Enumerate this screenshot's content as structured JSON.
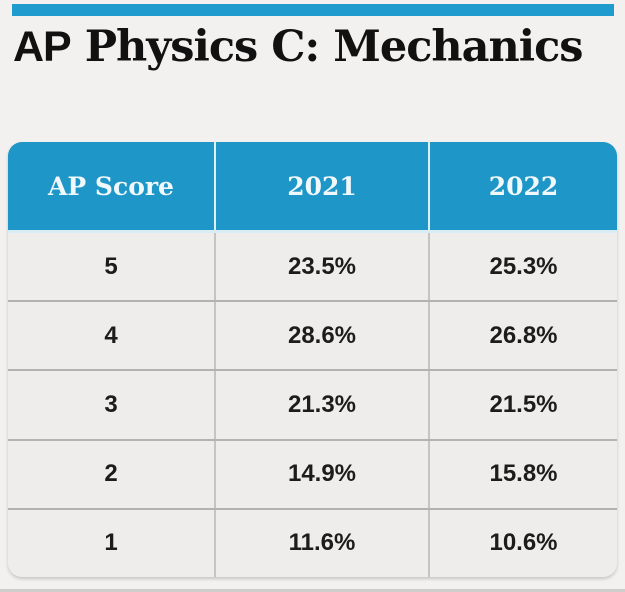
{
  "page": {
    "title_prefix": "AP",
    "title_rest": " Physics C: Mechanics"
  },
  "chart_data": {
    "type": "table",
    "title": "AP Physics C: Mechanics",
    "columns": [
      "AP Score",
      "2021",
      "2022"
    ],
    "categories": [
      "5",
      "4",
      "3",
      "2",
      "1"
    ],
    "rows": [
      [
        "5",
        "23.5%",
        "25.3%"
      ],
      [
        "4",
        "28.6%",
        "26.8%"
      ],
      [
        "3",
        "21.3%",
        "21.5%"
      ],
      [
        "2",
        "14.9%",
        "15.8%"
      ],
      [
        "1",
        "11.6%",
        "10.6%"
      ]
    ],
    "series": [
      {
        "name": "2021",
        "values": [
          23.5,
          28.6,
          21.3,
          14.9,
          11.6
        ]
      },
      {
        "name": "2022",
        "values": [
          25.3,
          26.8,
          21.5,
          15.8,
          10.6
        ]
      }
    ]
  },
  "colors": {
    "accent_blue": "#1e96c8",
    "top_bar_blue": "#1f9ccd",
    "page_bg": "#f3f1ef",
    "row_bg": "#efedeb",
    "header_text": "#f0f8fb",
    "cell_text": "#1c1c1c",
    "title_text": "#111111",
    "row_divider": "#b4b2b0",
    "col_divider": "#c6c4c1"
  }
}
